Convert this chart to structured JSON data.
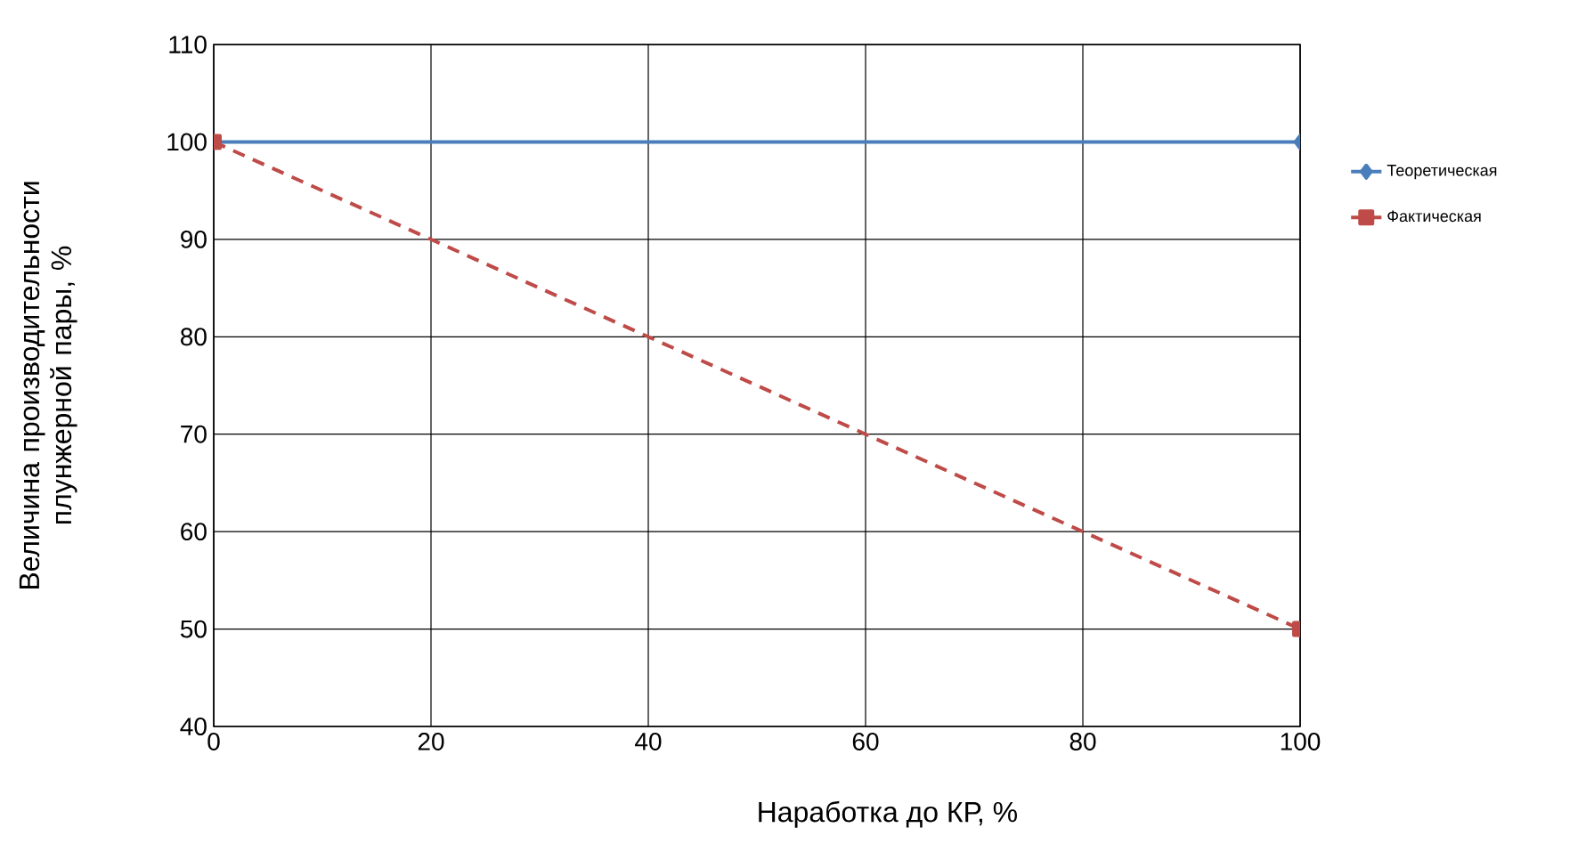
{
  "chart_data": {
    "type": "line",
    "xlabel": "Наработка до КР, %",
    "ylabel": "Величина производительности плунжерной пары, %",
    "x": [
      0,
      100
    ],
    "series": [
      {
        "name": "Теоретическая",
        "color": "#4a7ebb",
        "values": [
          100,
          100
        ],
        "marker": "diamond",
        "line_style": "solid"
      },
      {
        "name": "Фактическая",
        "color": "#be4b48",
        "values": [
          100,
          50
        ],
        "marker": "square",
        "line_style": "dashed"
      }
    ],
    "xlim": [
      0,
      100
    ],
    "xticks": [
      0,
      20,
      40,
      60,
      80,
      100
    ],
    "ylim": [
      40,
      110
    ],
    "yticks": [
      40,
      50,
      60,
      70,
      80,
      90,
      100,
      110
    ],
    "grid": true,
    "legend": "right"
  }
}
